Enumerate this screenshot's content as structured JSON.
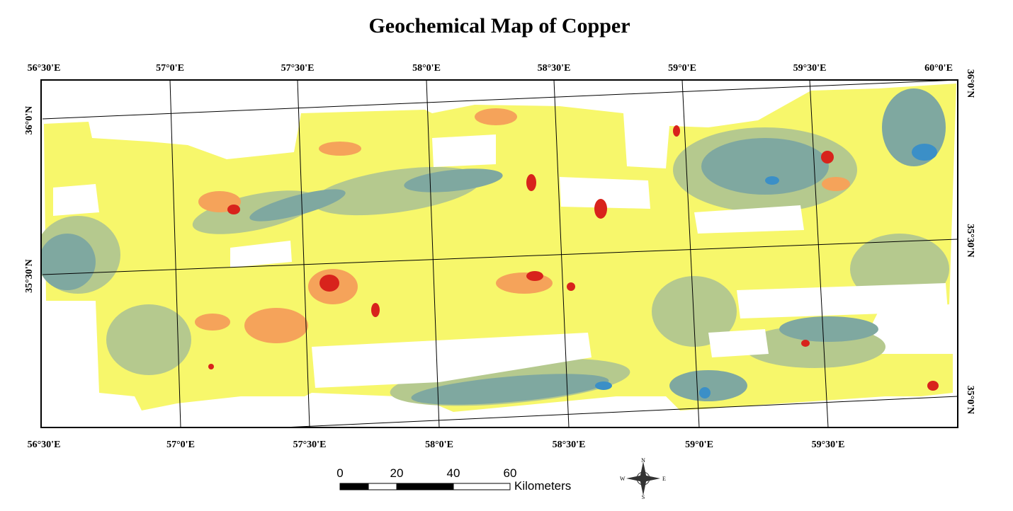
{
  "header": {
    "title": "Geochemical Map of Copper"
  },
  "graticule": {
    "top": [
      "56°30'E",
      "57°0'E",
      "57°30'E",
      "58°0'E",
      "58°30'E",
      "59°0'E",
      "59°30'E",
      "60°0'E"
    ],
    "bottom": [
      "56°30'E",
      "57°0'E",
      "57°30'E",
      "58°0'E",
      "58°30'E",
      "59°0'E",
      "59°30'E"
    ],
    "left": [
      "36°0'N",
      "35°30'N"
    ],
    "right": [
      "36°0'N",
      "35°30'N",
      "35°0'N"
    ]
  },
  "scale_bar": {
    "ticks": [
      0,
      20,
      40,
      60
    ],
    "unit": "Kilometers"
  },
  "compass": {
    "n": "N",
    "e": "E",
    "s": "S",
    "w": "W"
  }
}
